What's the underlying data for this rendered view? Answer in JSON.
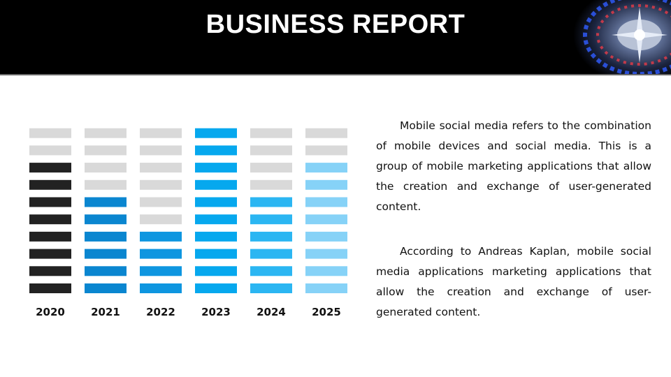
{
  "slide": {
    "title": "BUSINESS REPORT",
    "paragraphs": [
      "Mobile social media refers to the combination of mobile devices and social media. This is a group of mobile marketing applications that allow the creation and exchange of user-generated content.",
      "According to Andreas Kaplan, mobile social media applications marketing applications that allow the creation and exchange of user-generated content."
    ]
  },
  "chart_data": {
    "type": "bar",
    "categories": [
      "2020",
      "2021",
      "2022",
      "2023",
      "2024",
      "2025"
    ],
    "values": [
      8,
      6,
      4,
      10,
      6,
      8
    ],
    "max_segments": 10,
    "colors": [
      "#222222",
      "#0a86d0",
      "#0e96e0",
      "#06a8ee",
      "#2bb6f2",
      "#86d2f7"
    ],
    "empty_color": "#d9d9d9",
    "title": "",
    "xlabel": "",
    "ylabel": "",
    "grid": false
  }
}
